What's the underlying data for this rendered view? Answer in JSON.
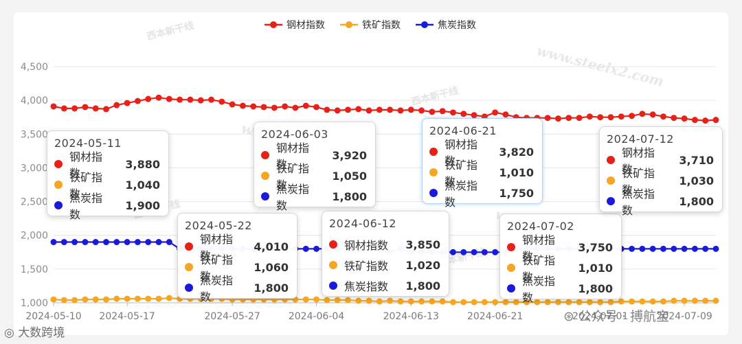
{
  "chart_data": {
    "type": "line",
    "categories": [
      "2024-05-10",
      "2024-05-11",
      "2024-05-12",
      "2024-05-13",
      "2024-05-14",
      "2024-05-15",
      "2024-05-16",
      "2024-05-17",
      "2024-05-18",
      "2024-05-19",
      "2024-05-20",
      "2024-05-21",
      "2024-05-22",
      "2024-05-23",
      "2024-05-24",
      "2024-05-25",
      "2024-05-26",
      "2024-05-27",
      "2024-05-28",
      "2024-05-29",
      "2024-05-30",
      "2024-05-31",
      "2024-06-01",
      "2024-06-02",
      "2024-06-03",
      "2024-06-04",
      "2024-06-05",
      "2024-06-06",
      "2024-06-07",
      "2024-06-08",
      "2024-06-09",
      "2024-06-10",
      "2024-06-11",
      "2024-06-12",
      "2024-06-13",
      "2024-06-14",
      "2024-06-15",
      "2024-06-16",
      "2024-06-17",
      "2024-06-18",
      "2024-06-19",
      "2024-06-20",
      "2024-06-21",
      "2024-06-22",
      "2024-06-23",
      "2024-06-24",
      "2024-06-25",
      "2024-06-26",
      "2024-06-27",
      "2024-06-28",
      "2024-06-29",
      "2024-06-30",
      "2024-07-01",
      "2024-07-02",
      "2024-07-03",
      "2024-07-04",
      "2024-07-05",
      "2024-07-06",
      "2024-07-07",
      "2024-07-08",
      "2024-07-09",
      "2024-07-10",
      "2024-07-11",
      "2024-07-12"
    ],
    "series": [
      {
        "name": "钢材指数",
        "color": "#e62117",
        "values": [
          3910,
          3880,
          3880,
          3900,
          3880,
          3870,
          3930,
          3960,
          3990,
          4020,
          4040,
          4020,
          4010,
          4010,
          4000,
          4010,
          3980,
          3940,
          3920,
          3910,
          3900,
          3890,
          3910,
          3890,
          3920,
          3900,
          3860,
          3850,
          3860,
          3870,
          3850,
          3860,
          3860,
          3850,
          3860,
          3850,
          3830,
          3840,
          3820,
          3800,
          3780,
          3760,
          3820,
          3790,
          3750,
          3740,
          3740,
          3740,
          3730,
          3740,
          3740,
          3760,
          3750,
          3750,
          3760,
          3770,
          3800,
          3790,
          3760,
          3740,
          3730,
          3710,
          3700,
          3710
        ]
      },
      {
        "name": "铁矿指数",
        "color": "#f5a623",
        "values": [
          1050,
          1040,
          1040,
          1050,
          1050,
          1050,
          1060,
          1060,
          1060,
          1060,
          1060,
          1070,
          1060,
          1060,
          1060,
          1060,
          1060,
          1050,
          1050,
          1050,
          1050,
          1050,
          1050,
          1050,
          1050,
          1050,
          1040,
          1040,
          1040,
          1030,
          1030,
          1020,
          1030,
          1020,
          1020,
          1020,
          1020,
          1020,
          1010,
          1010,
          1010,
          1010,
          1010,
          1010,
          1010,
          1010,
          1010,
          1010,
          1010,
          1010,
          1010,
          1010,
          1010,
          1010,
          1020,
          1020,
          1020,
          1020,
          1020,
          1030,
          1030,
          1030,
          1030,
          1030
        ]
      },
      {
        "name": "焦炭指数",
        "color": "#1a1adb",
        "values": [
          1900,
          1900,
          1900,
          1900,
          1900,
          1900,
          1900,
          1900,
          1900,
          1900,
          1900,
          1900,
          1800,
          1800,
          1800,
          1800,
          1800,
          1800,
          1800,
          1800,
          1800,
          1800,
          1800,
          1800,
          1800,
          1800,
          1800,
          1800,
          1800,
          1800,
          1800,
          1800,
          1750,
          1800,
          1750,
          1750,
          1750,
          1750,
          1750,
          1750,
          1750,
          1750,
          1750,
          1750,
          1800,
          1800,
          1800,
          1800,
          1800,
          1800,
          1800,
          1800,
          1800,
          1800,
          1800,
          1800,
          1800,
          1800,
          1800,
          1800,
          1800,
          1800,
          1800,
          1800
        ]
      }
    ],
    "ylim": [
      1000,
      4500
    ],
    "yticks": [
      "1,000",
      "1,500",
      "2,000",
      "2,500",
      "3,000",
      "3,500",
      "4,000",
      "4,500"
    ],
    "xticks": [
      "2024-05-10",
      "2024-05-17",
      "2024-05-27",
      "2024-06-04",
      "2024-06-13",
      "2024-06-21",
      "2024-07-01",
      "2024-07-09"
    ],
    "grid": true,
    "legend_position": "top-center"
  },
  "tooltips": [
    {
      "date": "2024-05-11",
      "rows": [
        {
          "name": "钢材指数",
          "value": "3,880",
          "color": "#e62117"
        },
        {
          "name": "铁矿指数",
          "value": "1,040",
          "color": "#f5a623"
        },
        {
          "name": "焦炭指数",
          "value": "1,900",
          "color": "#1a1adb"
        }
      ]
    },
    {
      "date": "2024-05-22",
      "rows": [
        {
          "name": "钢材指数",
          "value": "4,010",
          "color": "#e62117"
        },
        {
          "name": "铁矿指数",
          "value": "1,060",
          "color": "#f5a623"
        },
        {
          "name": "焦炭指数",
          "value": "1,800",
          "color": "#1a1adb"
        }
      ]
    },
    {
      "date": "2024-06-03",
      "rows": [
        {
          "name": "钢材指数",
          "value": "3,920",
          "color": "#e62117"
        },
        {
          "name": "铁矿指数",
          "value": "1,050",
          "color": "#f5a623"
        },
        {
          "name": "焦炭指数",
          "value": "1,800",
          "color": "#1a1adb"
        }
      ]
    },
    {
      "date": "2024-06-12",
      "rows": [
        {
          "name": "钢材指数",
          "value": "3,850",
          "color": "#e62117"
        },
        {
          "name": "铁矿指数",
          "value": "1,020",
          "color": "#f5a623"
        },
        {
          "name": "焦炭指数",
          "value": "1,800",
          "color": "#1a1adb"
        }
      ]
    },
    {
      "date": "2024-06-21",
      "rows": [
        {
          "name": "钢材指数",
          "value": "3,820",
          "color": "#e62117"
        },
        {
          "name": "铁矿指数",
          "value": "1,010",
          "color": "#f5a623"
        },
        {
          "name": "焦炭指数",
          "value": "1,750",
          "color": "#1a1adb"
        }
      ]
    },
    {
      "date": "2024-07-02",
      "rows": [
        {
          "name": "钢材指数",
          "value": "3,750",
          "color": "#e62117"
        },
        {
          "name": "铁矿指数",
          "value": "1,010",
          "color": "#f5a623"
        },
        {
          "name": "焦炭指数",
          "value": "1,800",
          "color": "#1a1adb"
        }
      ]
    },
    {
      "date": "2024-07-12",
      "rows": [
        {
          "name": "钢材指数",
          "value": "3,710",
          "color": "#e62117"
        },
        {
          "name": "铁矿指数",
          "value": "1,030",
          "color": "#f5a623"
        },
        {
          "name": "焦炭指数",
          "value": "1,800",
          "color": "#1a1adb"
        }
      ]
    }
  ],
  "watermark": {
    "site": "www.steelx2.com",
    "brand": "西本新干线",
    "footer_left": "大数跨境",
    "footer_right": "公众号 · 搏航宝"
  }
}
